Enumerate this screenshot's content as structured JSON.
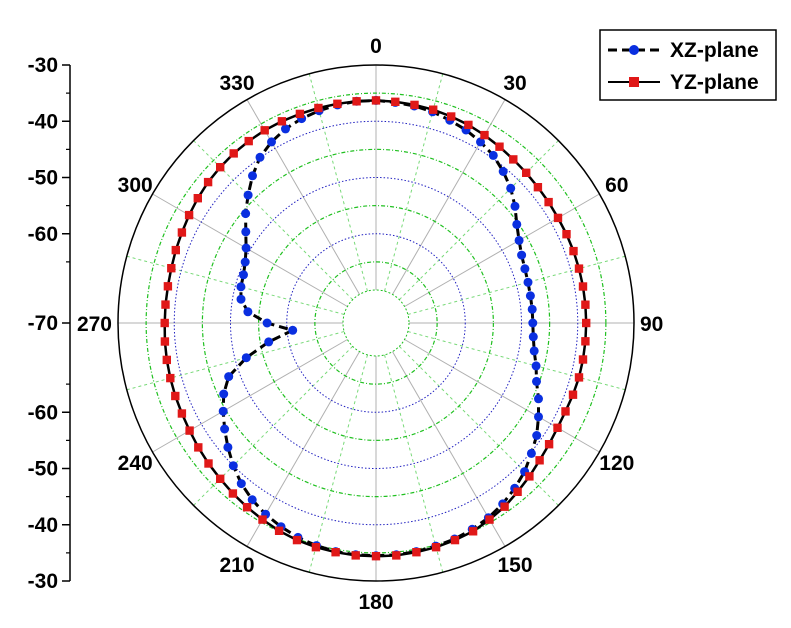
{
  "chart_data": {
    "type": "polar-line",
    "title": "",
    "angle_direction": "clockwise",
    "angle_zero": "top",
    "angle_ticks": [
      "0",
      "30",
      "60",
      "90",
      "120",
      "150",
      "180",
      "210",
      "240",
      "270",
      "300",
      "330"
    ],
    "radial_axis": {
      "range": [
        -70,
        -30
      ],
      "center_value": -70,
      "tick_labels_upper": [
        "-30",
        "-40",
        "-50",
        "-60"
      ],
      "tick_label_center": "-70",
      "tick_labels_lower": [
        "-60",
        "-50",
        "-40",
        "-30"
      ],
      "minor_ticks": true
    },
    "grid": {
      "major_circles": [
        -60,
        -50,
        -40,
        -30
      ],
      "minor_circles": [
        -65,
        -55,
        -45,
        -35
      ],
      "radial_lines_every_deg": 30,
      "minor_radial_lines_every_deg": 15,
      "major_circle_color": "#2020c0",
      "minor_circle_color": "#20c020",
      "radial_color": "#b0b0b0",
      "outer_color": "#000000"
    },
    "legend": {
      "position": "top-right",
      "entries": [
        "XZ-plane",
        "YZ-plane"
      ]
    },
    "series": [
      {
        "name": "XZ-plane",
        "color": "#0a2fe0",
        "marker": "circle",
        "line_style": "dashed",
        "angles": [
          0,
          5,
          10,
          15,
          20,
          25,
          30,
          35,
          40,
          45,
          50,
          55,
          60,
          65,
          70,
          75,
          80,
          85,
          90,
          95,
          100,
          105,
          110,
          115,
          120,
          125,
          130,
          135,
          140,
          145,
          150,
          155,
          160,
          165,
          170,
          175,
          180,
          185,
          190,
          195,
          200,
          205,
          210,
          215,
          220,
          225,
          230,
          235,
          240,
          245,
          250,
          255,
          260,
          265,
          270,
          275,
          280,
          285,
          290,
          295,
          300,
          305,
          310,
          315,
          320,
          325,
          330,
          335,
          340,
          345,
          350,
          355
        ],
        "values": [
          -36.3,
          -36.5,
          -36.7,
          -37,
          -37.5,
          -38,
          -38.7,
          -39.5,
          -40.7,
          -42,
          -43.6,
          -45.3,
          -46.5,
          -47.3,
          -47.7,
          -47.9,
          -48,
          -48,
          -48,
          -47.8,
          -47.3,
          -46.4,
          -45.5,
          -44,
          -42.5,
          -41,
          -39.8,
          -38.5,
          -37.5,
          -36.6,
          -35.9,
          -35.4,
          -35,
          -34.8,
          -34.6,
          -34.5,
          -34.5,
          -34.5,
          -34.6,
          -34.9,
          -35.3,
          -35.9,
          -36.6,
          -37.5,
          -38.6,
          -40,
          -41.5,
          -43,
          -44.5,
          -46,
          -48,
          -52,
          -56.5,
          -61,
          -56.5,
          -53,
          -51.5,
          -51,
          -50.8,
          -50.2,
          -49.2,
          -47.6,
          -45.6,
          -43.7,
          -41.7,
          -39.9,
          -38.7,
          -37.8,
          -37.2,
          -36.8,
          -36.5,
          -36.3
        ]
      },
      {
        "name": "YZ-plane",
        "color": "#e01818",
        "marker": "square",
        "line_style": "solid",
        "angles": [
          0,
          5,
          10,
          15,
          20,
          25,
          30,
          35,
          40,
          45,
          50,
          55,
          60,
          65,
          70,
          75,
          80,
          85,
          90,
          95,
          100,
          105,
          110,
          115,
          120,
          125,
          130,
          135,
          140,
          145,
          150,
          155,
          160,
          165,
          170,
          175,
          180,
          185,
          190,
          195,
          200,
          205,
          210,
          215,
          220,
          225,
          230,
          235,
          240,
          245,
          250,
          255,
          260,
          265,
          270,
          275,
          280,
          285,
          290,
          295,
          300,
          305,
          310,
          315,
          320,
          325,
          330,
          335,
          340,
          345,
          350,
          355
        ],
        "values": [
          -36.3,
          -36.4,
          -36.5,
          -36.6,
          -36.8,
          -37,
          -37.3,
          -37.6,
          -37.9,
          -38.1,
          -38.3,
          -38.4,
          -38.5,
          -38.5,
          -38.5,
          -38.5,
          -38.5,
          -38.5,
          -38.5,
          -38.5,
          -38.5,
          -38.5,
          -38.6,
          -38.7,
          -38.6,
          -38.3,
          -37.9,
          -37.3,
          -36.7,
          -36,
          -35.5,
          -35,
          -34.8,
          -34.6,
          -34.5,
          -34.4,
          -34.4,
          -34.4,
          -34.5,
          -34.6,
          -34.8,
          -35.1,
          -35.5,
          -35.9,
          -36.3,
          -36.7,
          -37,
          -37.3,
          -37.6,
          -37.8,
          -37.9,
          -38,
          -38.1,
          -38.2,
          -38.3,
          -38.3,
          -38.3,
          -38.2,
          -38,
          -37.8,
          -37.5,
          -37.2,
          -36.9,
          -36.7,
          -36.5,
          -36.4,
          -36.3,
          -36.3,
          -36.3,
          -36.3,
          -36.3,
          -36.3
        ]
      }
    ]
  }
}
